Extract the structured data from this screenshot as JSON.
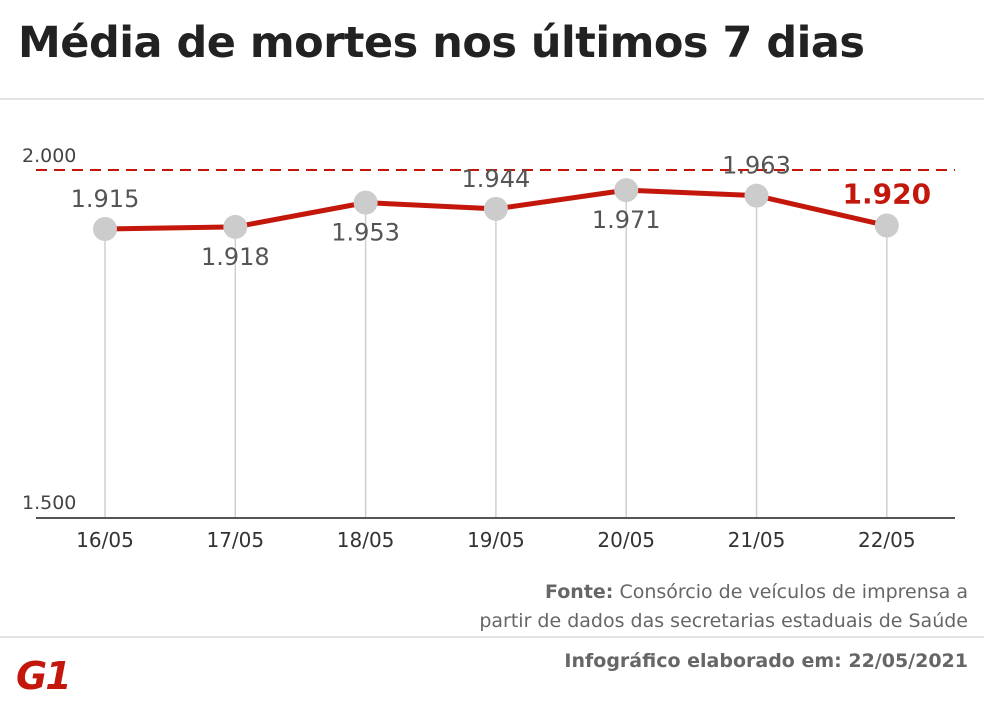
{
  "title": "Média de mortes nos últimos 7 dias",
  "chart_data": {
    "type": "line",
    "categories": [
      "16/05",
      "17/05",
      "18/05",
      "19/05",
      "20/05",
      "21/05",
      "22/05"
    ],
    "series": [
      {
        "values": [
          1915,
          1918,
          1953,
          1944,
          1971,
          1963,
          1920
        ],
        "labels": [
          "1.915",
          "1.918",
          "1.953",
          "1.944",
          "1.971",
          "1.963",
          "1.920"
        ],
        "color": "#c4170c",
        "highlight_last": true
      }
    ],
    "ylim": [
      1500,
      2000
    ],
    "yticks": [
      {
        "value": 1500,
        "label": "1.500"
      },
      {
        "value": 2000,
        "label": "2.000"
      }
    ],
    "reference_line": {
      "value": 2000,
      "style": "dashed",
      "color": "#c4170c"
    },
    "grid": "vertical",
    "colors": {
      "line": "#c4170c",
      "marker": "#cccccc",
      "label": "#555555",
      "highlight": "#c4170c"
    }
  },
  "source": {
    "prefix": "Fonte:",
    "line1": "Consórcio de veículos de imprensa a",
    "line2": "partir de dados das secretarias estaduais de Saúde"
  },
  "credit": "Infográfico elaborado em: 22/05/2021",
  "logo": {
    "text": "G1",
    "color": "#c4170c"
  }
}
